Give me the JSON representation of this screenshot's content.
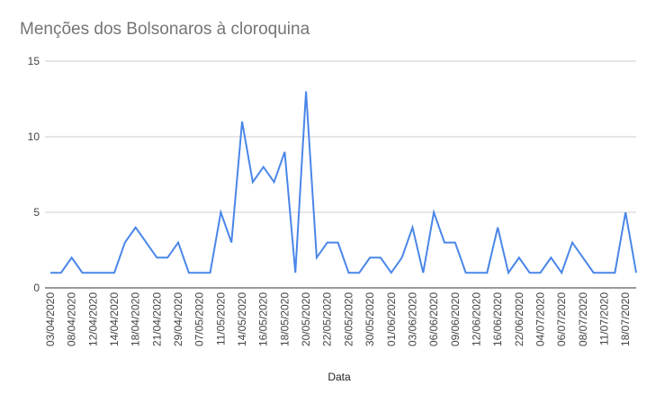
{
  "chart_data": {
    "type": "line",
    "title": "Menções dos Bolsonaros à cloroquina",
    "xlabel": "Data",
    "ylabel": "",
    "ylim": [
      0,
      15
    ],
    "yticks": [
      0,
      5,
      10,
      15
    ],
    "grid": true,
    "legend": "none",
    "line_color": "#4a86e8",
    "x_tick_labels": [
      "03/04/2020",
      "08/04/2020",
      "12/04/2020",
      "14/04/2020",
      "18/04/2020",
      "21/04/2020",
      "29/04/2020",
      "07/05/2020",
      "11/05/2020",
      "14/05/2020",
      "16/05/2020",
      "18/05/2020",
      "20/05/2020",
      "22/05/2020",
      "26/05/2020",
      "30/05/2020",
      "01/06/2020",
      "03/06/2020",
      "06/06/2020",
      "09/06/2020",
      "12/06/2020",
      "16/06/2020",
      "22/06/2020",
      "04/07/2020",
      "06/07/2020",
      "08/07/2020",
      "11/07/2020",
      "18/07/2020"
    ],
    "values": [
      1,
      1,
      2,
      1,
      1,
      1,
      1,
      3,
      4,
      3,
      2,
      2,
      3,
      1,
      1,
      1,
      5,
      3,
      11,
      7,
      8,
      7,
      9,
      1,
      13,
      2,
      3,
      3,
      1,
      1,
      2,
      2,
      1,
      2,
      4,
      1,
      5,
      3,
      3,
      1,
      1,
      1,
      4,
      1,
      2,
      1,
      1,
      2,
      1,
      3,
      2,
      1,
      1,
      1,
      5,
      1
    ]
  }
}
